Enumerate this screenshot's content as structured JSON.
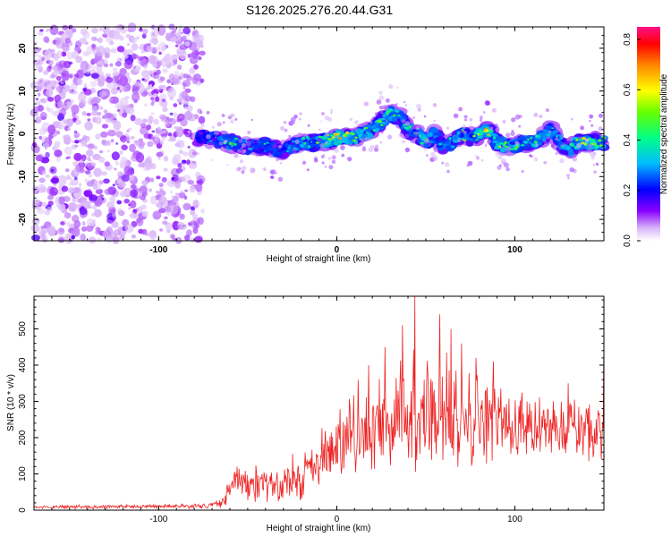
{
  "title": "S126.2025.276.20.44.G31",
  "chart_data": [
    {
      "type": "heatmap",
      "xlabel": "Height of straight line (km)",
      "ylabel": "Frequency (Hz)",
      "xlim": [
        -170,
        150
      ],
      "ylim": [
        -25,
        25
      ],
      "xticks": [
        "-100",
        "0",
        "100"
      ],
      "yticks": [
        "-20",
        "-10",
        "0",
        "10",
        "20"
      ],
      "noise_region_x": [
        -170,
        -78
      ],
      "ridge": {
        "x": [
          -78,
          -70,
          -60,
          -50,
          -40,
          -30,
          -20,
          -10,
          0,
          10,
          20,
          25,
          30,
          35,
          40,
          45,
          50,
          55,
          60,
          65,
          70,
          75,
          80,
          85,
          90,
          95,
          100,
          105,
          110,
          115,
          120,
          125,
          130,
          135,
          140,
          150
        ],
        "freq": [
          -1,
          -1,
          -2,
          -3,
          -3,
          -4,
          -2,
          -2,
          -1,
          -1,
          1,
          3,
          5,
          4,
          1,
          0,
          -2,
          0,
          -3,
          -2,
          0,
          -1,
          0,
          1,
          -2,
          -3,
          -3,
          -2,
          -2,
          -1,
          1,
          -2,
          -4,
          -2,
          -2,
          -2
        ],
        "amp": [
          0.25,
          0.35,
          0.5,
          0.4,
          0.45,
          0.35,
          0.5,
          0.6,
          0.75,
          0.7,
          0.6,
          0.55,
          0.6,
          0.5,
          0.55,
          0.45,
          0.6,
          0.5,
          0.55,
          0.5,
          0.6,
          0.5,
          0.65,
          0.75,
          0.6,
          0.55,
          0.6,
          0.5,
          0.6,
          0.55,
          0.5,
          0.55,
          0.6,
          0.6,
          0.7,
          0.6
        ]
      },
      "colorbar": {
        "label": "Normalized spectral amplitude",
        "range": [
          0,
          0.85
        ],
        "ticks": [
          "0.0",
          "0.2",
          "0.4",
          "0.6",
          "0.8"
        ]
      }
    },
    {
      "type": "line",
      "xlabel": "Height of straight line (km)",
      "ylabel": "SNR (10 * v/v)",
      "xlim": [
        -170,
        150
      ],
      "ylim": [
        0,
        590
      ],
      "xticks": [
        "-100",
        "0",
        "100"
      ],
      "yticks": [
        "0",
        "100",
        "200",
        "300",
        "400",
        "500"
      ],
      "color": "#ee2222",
      "envelope": {
        "x": [
          -170,
          -100,
          -75,
          -65,
          -60,
          -55,
          -50,
          -45,
          -40,
          -35,
          -30,
          -25,
          -20,
          -15,
          -10,
          -5,
          0,
          10,
          20,
          30,
          40,
          50,
          60,
          70,
          80,
          90,
          100,
          110,
          120,
          130,
          140,
          150
        ],
        "mean": [
          8,
          10,
          12,
          20,
          60,
          80,
          70,
          75,
          80,
          70,
          65,
          95,
          70,
          120,
          130,
          150,
          170,
          200,
          220,
          240,
          260,
          270,
          260,
          250,
          250,
          250,
          240,
          230,
          230,
          230,
          220,
          220
        ],
        "spread": [
          6,
          7,
          8,
          15,
          50,
          60,
          60,
          65,
          70,
          60,
          55,
          85,
          70,
          80,
          90,
          100,
          110,
          130,
          150,
          180,
          190,
          190,
          190,
          170,
          150,
          140,
          130,
          120,
          110,
          110,
          110,
          110
        ]
      },
      "peaks": [
        {
          "x": 12,
          "y": 360
        },
        {
          "x": 18,
          "y": 400
        },
        {
          "x": 27,
          "y": 450
        },
        {
          "x": 37,
          "y": 510
        },
        {
          "x": 44,
          "y": 590
        },
        {
          "x": 58,
          "y": 540
        },
        {
          "x": 64,
          "y": 500
        },
        {
          "x": 70,
          "y": 460
        },
        {
          "x": 78,
          "y": 420
        },
        {
          "x": 88,
          "y": 410
        },
        {
          "x": 130,
          "y": 350
        },
        {
          "x": 150,
          "y": 420
        }
      ]
    }
  ]
}
